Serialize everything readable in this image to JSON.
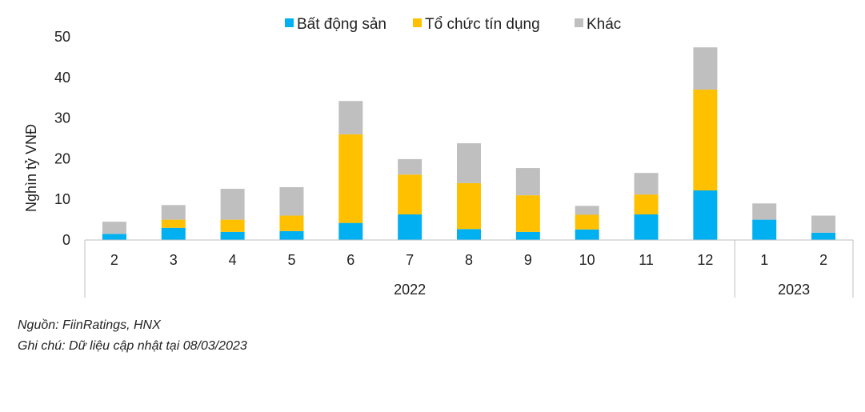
{
  "chart_data": {
    "type": "bar",
    "stacked": true,
    "ylabel": "Nghìn tỷ VNĐ",
    "ylim": [
      0,
      50
    ],
    "yticks": [
      0,
      10,
      20,
      30,
      40,
      50
    ],
    "grid": false,
    "legend_position": "top",
    "categories": [
      "2",
      "3",
      "4",
      "5",
      "6",
      "7",
      "8",
      "9",
      "10",
      "11",
      "12",
      "1",
      "2"
    ],
    "category_groups": [
      {
        "label": "2022",
        "count": 11
      },
      {
        "label": "2023",
        "count": 2
      }
    ],
    "series": [
      {
        "name": "Bất động sản",
        "color": "#00B0F0",
        "values": [
          1.5,
          3.0,
          2.0,
          2.2,
          4.2,
          6.3,
          2.7,
          2.0,
          2.6,
          6.3,
          12.2,
          5.0,
          1.8
        ]
      },
      {
        "name": "Tổ chức tín dụng",
        "color": "#FFC000",
        "values": [
          0.0,
          2.0,
          3.0,
          3.8,
          21.8,
          9.8,
          11.3,
          9.0,
          3.6,
          4.9,
          24.8,
          0.0,
          0.0
        ]
      },
      {
        "name": "Khác",
        "color": "#BFBFBF",
        "values": [
          3.0,
          3.6,
          7.6,
          7.0,
          8.2,
          3.8,
          9.8,
          6.7,
          2.2,
          5.3,
          10.4,
          4.0,
          4.2
        ]
      }
    ]
  },
  "notes": {
    "source": "Nguồn: FiinRatings, HNX",
    "note": "Ghi chú: Dữ liệu cập nhật tại 08/03/2023"
  }
}
